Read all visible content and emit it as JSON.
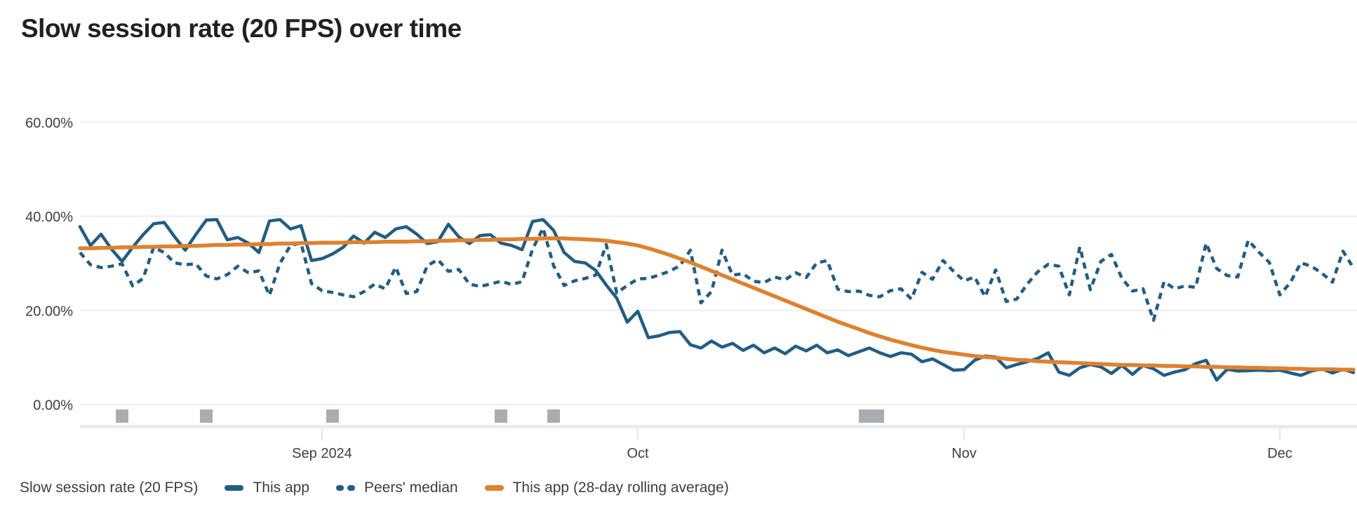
{
  "header": {
    "title": "Slow session rate (20 FPS) over time"
  },
  "colors": {
    "this_app_blue": "#215d85",
    "rolling_avg_orange": "#e0812e",
    "gridline": "#eceef1",
    "axis_band": "#e9ebee",
    "axis_tick": "#e3e5e8",
    "release_marker_gray": "#a9adb2",
    "axis_text": "#3c4043",
    "title_text": "#202124"
  },
  "legend": {
    "axis_label": "Slow session rate (20 FPS)",
    "items": [
      {
        "label": "This app",
        "style": "solid",
        "color": "#215d85"
      },
      {
        "label": "Peers' median",
        "style": "dashed",
        "color": "#215d85"
      },
      {
        "label": "This app (28-day rolling average)",
        "style": "solid",
        "color": "#e0812e"
      }
    ]
  },
  "chart_data": {
    "type": "line",
    "title": "Slow session rate (20 FPS) over time",
    "xlabel": "",
    "ylabel": "Slow session rate (20 FPS)",
    "grid": "horizontal",
    "legend_position": "bottom",
    "x_frequency": "daily",
    "x_start_date_estimate": "2024-08-09",
    "x_end_date_estimate": "2024-12-08",
    "x_axis": {
      "tick_labels": [
        "Sep 2024",
        "Oct",
        "Nov",
        "Dec"
      ],
      "tick_day_indices": [
        23,
        53,
        84,
        114
      ]
    },
    "y_axis": {
      "tick_labels": [
        "0.00%",
        "20.00%",
        "40.00%",
        "60.00%"
      ],
      "tick_values": [
        0,
        20,
        40,
        60
      ],
      "range": [
        0,
        69
      ],
      "unit": "percent"
    },
    "release_markers_day_indices": [
      4,
      12,
      24,
      40,
      45,
      74.6,
      75.8
    ],
    "series": [
      {
        "name": "This app",
        "style": "solid",
        "color": "#215d85",
        "values": [
          37.8,
          33.8,
          36.2,
          33.0,
          30.4,
          33.4,
          36.1,
          38.4,
          38.7,
          35.6,
          32.8,
          36.1,
          39.2,
          39.3,
          35.0,
          35.5,
          34.3,
          32.3,
          39.0,
          39.3,
          37.3,
          38.0,
          30.6,
          31.0,
          32.0,
          33.4,
          35.8,
          34.3,
          36.6,
          35.5,
          37.3,
          37.8,
          36.2,
          34.2,
          34.6,
          38.3,
          35.6,
          34.2,
          35.9,
          36.1,
          34.3,
          33.8,
          32.9,
          38.9,
          39.3,
          37.0,
          32.3,
          30.4,
          30.1,
          28.5,
          25.4,
          22.6,
          17.5,
          19.8,
          14.2,
          14.6,
          15.3,
          15.5,
          12.7,
          12.0,
          13.5,
          12.2,
          13.0,
          11.5,
          12.6,
          11.0,
          12.0,
          10.8,
          12.4,
          11.4,
          12.6,
          11.0,
          11.6,
          10.4,
          11.2,
          12.0,
          11.0,
          10.2,
          11.0,
          10.7,
          9.1,
          9.7,
          8.5,
          7.3,
          7.4,
          9.4,
          10.3,
          10.1,
          7.8,
          8.5,
          9.1,
          9.8,
          11.0,
          6.9,
          6.2,
          7.8,
          8.5,
          8.0,
          6.6,
          8.3,
          6.4,
          8.3,
          7.6,
          6.2,
          6.9,
          7.4,
          8.7,
          9.4,
          5.2,
          7.5,
          7.1,
          7.2,
          7.3,
          7.2,
          7.3,
          6.7,
          6.2,
          7.1,
          7.6,
          6.7,
          7.5,
          6.8
        ]
      },
      {
        "name": "Peers' median",
        "style": "dashed",
        "color": "#215d85",
        "values": [
          32.3,
          29.7,
          29.1,
          29.4,
          29.9,
          25.2,
          26.8,
          33.4,
          32.3,
          30.1,
          29.7,
          29.9,
          27.3,
          26.7,
          27.6,
          29.4,
          28.0,
          28.4,
          23.2,
          30.0,
          33.8,
          34.3,
          25.7,
          24.2,
          23.8,
          23.3,
          22.9,
          24.0,
          25.6,
          24.6,
          29.2,
          23.6,
          24.0,
          29.5,
          30.8,
          28.3,
          28.7,
          25.6,
          25.1,
          25.6,
          26.2,
          25.5,
          26.1,
          33.0,
          37.5,
          29.5,
          25.3,
          26.3,
          26.8,
          27.5,
          34.0,
          23.7,
          25.3,
          26.7,
          26.8,
          27.5,
          28.3,
          29.5,
          32.8,
          21.6,
          24.0,
          32.8,
          27.5,
          27.8,
          26.2,
          25.9,
          27.1,
          26.5,
          28.0,
          27.0,
          30.1,
          30.6,
          24.5,
          24.0,
          24.1,
          23.2,
          22.9,
          24.2,
          24.6,
          22.4,
          28.1,
          26.6,
          30.6,
          28.3,
          26.3,
          27.1,
          22.9,
          28.6,
          21.9,
          22.4,
          25.6,
          28.2,
          29.8,
          29.4,
          23.3,
          33.5,
          24.4,
          30.4,
          31.9,
          26.8,
          24.1,
          24.6,
          17.9,
          26.1,
          24.6,
          25.2,
          24.9,
          34.3,
          28.9,
          27.4,
          27.1,
          34.9,
          32.4,
          30.2,
          23.3,
          25.9,
          30.1,
          29.4,
          27.9,
          26.0,
          32.6,
          29.0
        ]
      },
      {
        "name": "This app (28-day rolling average)",
        "style": "solid-thick",
        "color": "#e0812e",
        "values": [
          33.2,
          33.2,
          33.3,
          33.3,
          33.4,
          33.4,
          33.5,
          33.5,
          33.6,
          33.6,
          33.7,
          33.7,
          33.8,
          33.9,
          33.9,
          34.0,
          34.0,
          34.1,
          34.1,
          34.2,
          34.2,
          34.3,
          34.3,
          34.4,
          34.4,
          34.4,
          34.5,
          34.5,
          34.5,
          34.6,
          34.6,
          34.6,
          34.7,
          34.7,
          34.8,
          34.8,
          34.9,
          34.9,
          35.0,
          35.0,
          35.1,
          35.1,
          35.2,
          35.2,
          35.3,
          35.3,
          35.3,
          35.2,
          35.1,
          35.0,
          34.8,
          34.5,
          34.2,
          33.8,
          33.2,
          32.5,
          31.8,
          31.0,
          30.2,
          29.3,
          28.4,
          27.5,
          26.6,
          25.7,
          24.8,
          23.9,
          23.0,
          22.1,
          21.2,
          20.3,
          19.4,
          18.5,
          17.6,
          16.8,
          16.0,
          15.2,
          14.5,
          13.8,
          13.2,
          12.6,
          12.1,
          11.6,
          11.2,
          10.9,
          10.6,
          10.3,
          10.1,
          9.9,
          9.7,
          9.5,
          9.4,
          9.2,
          9.1,
          9.0,
          8.9,
          8.8,
          8.7,
          8.6,
          8.5,
          8.4,
          8.4,
          8.3,
          8.3,
          8.2,
          8.2,
          8.1,
          8.1,
          8.0,
          8.0,
          7.9,
          7.9,
          7.8,
          7.8,
          7.7,
          7.7,
          7.6,
          7.6,
          7.5,
          7.5,
          7.5,
          7.4,
          7.4
        ]
      }
    ]
  }
}
